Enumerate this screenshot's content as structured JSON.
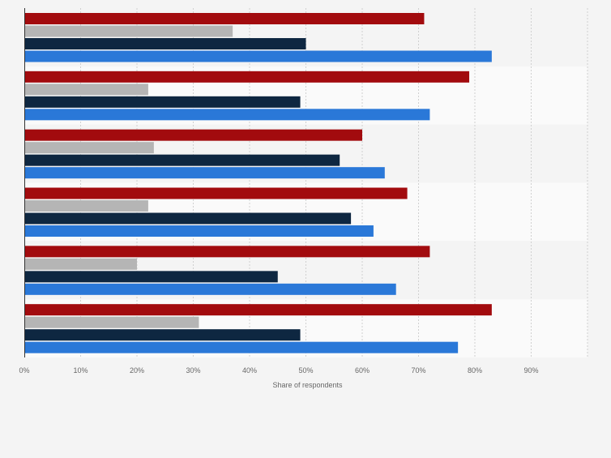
{
  "chart_data": {
    "type": "bar",
    "orientation": "horizontal",
    "title": "",
    "xlabel": "Share of respondents",
    "ylabel": "",
    "xlim": [
      0,
      100
    ],
    "x_ticks": [
      "0%",
      "10%",
      "20%",
      "30%",
      "40%",
      "50%",
      "60%",
      "70%",
      "80%",
      "90%"
    ],
    "grid": true,
    "legend": "none",
    "categories": [
      "",
      "",
      "",
      "",
      "",
      ""
    ],
    "series": [
      {
        "color": "#a20b0e",
        "values": [
          71,
          79,
          60,
          68,
          72,
          83
        ]
      },
      {
        "color": "#b5b5b5",
        "values": [
          37,
          22,
          23,
          22,
          20,
          31
        ]
      },
      {
        "color": "#0e2741",
        "values": [
          50,
          49,
          56,
          58,
          45,
          49
        ]
      },
      {
        "color": "#2a78d8",
        "values": [
          83,
          72,
          64,
          62,
          66,
          77
        ]
      }
    ]
  }
}
